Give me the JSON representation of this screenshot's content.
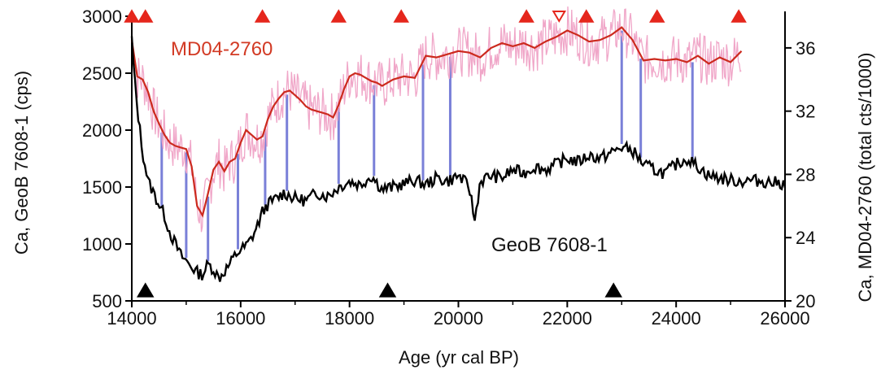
{
  "chart_data": {
    "type": "line",
    "xlabel": "Age (yr cal BP)",
    "ylabel_left": "Ca, GeoB 7608-1 (cps)",
    "ylabel_right": "Ca, MD04-2760 (total cts/1000)",
    "xlim": [
      14000,
      26000
    ],
    "ylim_left": [
      500,
      3000
    ],
    "ylim_right": [
      20,
      38
    ],
    "x_ticks": [
      14000,
      16000,
      18000,
      20000,
      22000,
      24000,
      26000
    ],
    "x_tick_labels": [
      "14000",
      "16000",
      "18000",
      "20000",
      "22000",
      "24000",
      "26000"
    ],
    "y_left_ticks": [
      500,
      1000,
      1500,
      2000,
      2500,
      3000
    ],
    "y_left_tick_labels": [
      "500",
      "1000",
      "1500",
      "2000",
      "2500",
      "3000"
    ],
    "y_right_ticks": [
      20,
      24,
      28,
      32,
      36
    ],
    "y_right_tick_labels": [
      "20",
      "24",
      "28",
      "32",
      "36"
    ],
    "grid": false,
    "legend": "none",
    "series": [
      {
        "name": "MD04-2760",
        "axis": "right",
        "color": "#cc2a1e",
        "raw_color": "#f0a6c8",
        "x": [
          14000,
          14100,
          14200,
          14300,
          14400,
          14500,
          14600,
          14700,
          14800,
          14900,
          15000,
          15100,
          15200,
          15300,
          15400,
          15500,
          15600,
          15700,
          15800,
          15900,
          16000,
          16100,
          16200,
          16300,
          16400,
          16500,
          16600,
          16700,
          16800,
          16900,
          17000,
          17100,
          17200,
          17300,
          17400,
          17500,
          17600,
          17700,
          17800,
          17900,
          18000,
          18100,
          18200,
          18300,
          18400,
          18500,
          18600,
          18700,
          18800,
          18900,
          19000,
          19200,
          19400,
          19600,
          19800,
          20000,
          20200,
          20400,
          20600,
          20800,
          21000,
          21200,
          21400,
          21600,
          21800,
          22000,
          22200,
          22400,
          22600,
          22800,
          23000,
          23200,
          23400,
          23600,
          23800,
          24000,
          24200,
          24400,
          24600,
          24800,
          25000,
          25200
        ],
        "values": [
          36.5,
          34.2,
          34.0,
          33.2,
          32.0,
          31.2,
          30.5,
          30.0,
          29.8,
          29.7,
          29.6,
          28.5,
          26.0,
          25.4,
          26.8,
          28.3,
          28.8,
          28.2,
          28.8,
          29.0,
          30.0,
          30.8,
          30.5,
          30.2,
          30.4,
          31.5,
          32.3,
          32.8,
          33.2,
          33.3,
          33.0,
          32.7,
          32.3,
          32.1,
          32.0,
          31.9,
          31.8,
          31.6,
          32.4,
          33.4,
          34.2,
          34.4,
          34.3,
          34.1,
          33.9,
          33.8,
          33.6,
          33.8,
          34.0,
          34.1,
          34.2,
          34.1,
          35.5,
          35.4,
          35.6,
          35.8,
          35.7,
          35.4,
          36.0,
          36.3,
          36.1,
          36.3,
          36.0,
          36.4,
          36.7,
          37.1,
          36.8,
          36.4,
          36.5,
          36.8,
          37.3,
          36.5,
          35.2,
          35.3,
          35.2,
          35.3,
          35.1,
          35.5,
          35.0,
          35.4,
          35.1,
          35.8
        ]
      },
      {
        "name": "GeoB 7608-1",
        "axis": "left",
        "color": "#000000",
        "x": [
          14000,
          14050,
          14100,
          14150,
          14200,
          14300,
          14400,
          14500,
          14600,
          14700,
          14800,
          14900,
          15000,
          15100,
          15200,
          15300,
          15400,
          15500,
          15600,
          15700,
          15800,
          15900,
          16000,
          16100,
          16200,
          16300,
          16400,
          16500,
          16600,
          16800,
          17000,
          17200,
          17400,
          17600,
          17800,
          18000,
          18200,
          18400,
          18600,
          18800,
          19000,
          19200,
          19400,
          19600,
          19800,
          20000,
          20200,
          20300,
          20400,
          20600,
          20800,
          21000,
          21200,
          21400,
          21600,
          21800,
          22000,
          22200,
          22400,
          22600,
          22800,
          23000,
          23200,
          23400,
          23600,
          23800,
          24000,
          24200,
          24400,
          24600,
          24800,
          25000,
          25200,
          25400,
          25600,
          25800,
          26000
        ],
        "values": [
          2800,
          2450,
          2200,
          2000,
          1800,
          1550,
          1450,
          1350,
          1250,
          1100,
          1000,
          900,
          850,
          800,
          750,
          730,
          820,
          780,
          700,
          760,
          820,
          900,
          950,
          980,
          1050,
          1150,
          1280,
          1350,
          1380,
          1450,
          1400,
          1380,
          1450,
          1420,
          1500,
          1550,
          1520,
          1600,
          1480,
          1500,
          1530,
          1560,
          1520,
          1580,
          1550,
          1600,
          1500,
          1200,
          1550,
          1600,
          1580,
          1650,
          1620,
          1680,
          1650,
          1700,
          1750,
          1720,
          1780,
          1750,
          1800,
          1850,
          1820,
          1700,
          1650,
          1620,
          1700,
          1750,
          1680,
          1600,
          1580,
          1560,
          1550,
          1560,
          1550,
          1540,
          1530
        ]
      }
    ],
    "tie_point_ages": [
      14550,
      15000,
      15400,
      15950,
      16450,
      16850,
      17800,
      18450,
      19350,
      19850,
      23000,
      23350,
      24300
    ],
    "red_triangle_ages": [
      14000,
      14250,
      16400,
      17800,
      18950,
      21250,
      22350,
      23650,
      25150
    ],
    "open_triangle_ages": [
      21850
    ],
    "black_triangle_ages": [
      14250,
      18700,
      22850
    ],
    "annotations": [
      "MD04-2760",
      "GeoB 7608-1"
    ]
  }
}
